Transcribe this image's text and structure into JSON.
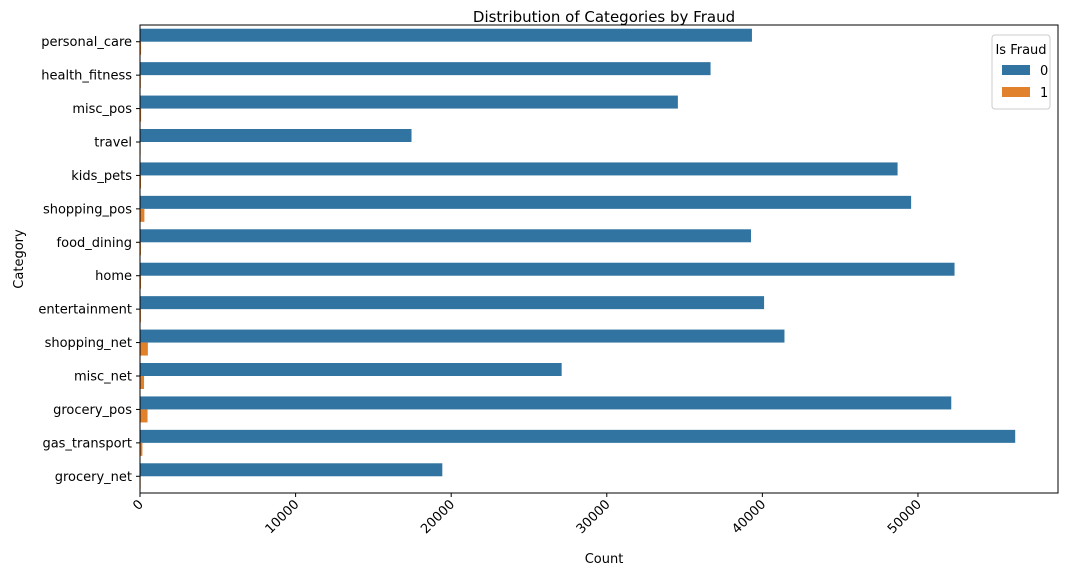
{
  "chart_data": {
    "type": "bar",
    "orientation": "horizontal",
    "title": "Distribution of Categories by Fraud",
    "xlabel": "Count",
    "ylabel": "Category",
    "xlim": [
      0,
      59000
    ],
    "xticks": [
      0,
      10000,
      20000,
      30000,
      40000,
      50000
    ],
    "xtick_labels": [
      "0",
      "10000",
      "20000",
      "30000",
      "40000",
      "50000"
    ],
    "categories": [
      "personal_care",
      "health_fitness",
      "misc_pos",
      "travel",
      "kids_pets",
      "shopping_pos",
      "food_dining",
      "home",
      "entertainment",
      "shopping_net",
      "misc_net",
      "grocery_pos",
      "gas_transport",
      "grocery_net"
    ],
    "legend": {
      "title": "Is Fraud",
      "position": "upper-right"
    },
    "series": [
      {
        "name": "0",
        "color": "#3274a1",
        "values": [
          39330,
          36670,
          34570,
          17450,
          48690,
          49560,
          39270,
          52350,
          40110,
          41420,
          27100,
          52140,
          56250,
          19430
        ]
      },
      {
        "name": "1",
        "color": "#e1812c",
        "values": [
          70,
          52,
          72,
          40,
          65,
          282,
          60,
          67,
          59,
          506,
          260,
          485,
          154,
          41
        ]
      }
    ],
    "grid": false
  }
}
